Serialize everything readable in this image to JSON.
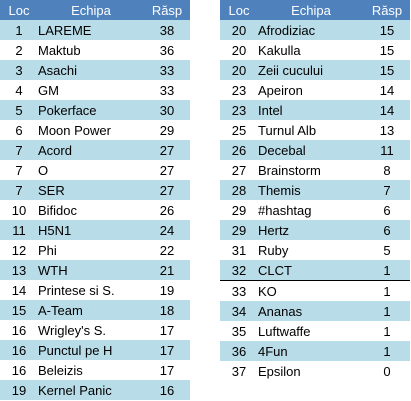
{
  "headers": {
    "loc": "Loc",
    "team": "Echipa",
    "score": "Răsp"
  },
  "left_rows": [
    {
      "loc": "1",
      "team": "LAREME",
      "score": "38"
    },
    {
      "loc": "2",
      "team": "Maktub",
      "score": "36"
    },
    {
      "loc": "3",
      "team": "Asachi",
      "score": "33"
    },
    {
      "loc": "4",
      "team": "GM",
      "score": "33"
    },
    {
      "loc": "5",
      "team": "Pokerface",
      "score": "30"
    },
    {
      "loc": "6",
      "team": "Moon Power",
      "score": "29"
    },
    {
      "loc": "7",
      "team": "Acord",
      "score": "27"
    },
    {
      "loc": "7",
      "team": "O",
      "score": "27"
    },
    {
      "loc": "7",
      "team": "SER",
      "score": "27"
    },
    {
      "loc": "10",
      "team": "Bifidoc",
      "score": "26"
    },
    {
      "loc": "11",
      "team": "H5N1",
      "score": "24"
    },
    {
      "loc": "12",
      "team": "Phi",
      "score": "22"
    },
    {
      "loc": "13",
      "team": "WTH",
      "score": "21"
    },
    {
      "loc": "14",
      "team": "Printese si S.",
      "score": "19"
    },
    {
      "loc": "15",
      "team": "A-Team",
      "score": "18"
    },
    {
      "loc": "16",
      "team": "Wrigley's S.",
      "score": "17"
    },
    {
      "loc": "16",
      "team": "Punctul pe H",
      "score": "17"
    },
    {
      "loc": "16",
      "team": "Beleizis",
      "score": "17"
    },
    {
      "loc": "19",
      "team": "Kernel Panic",
      "score": "16"
    }
  ],
  "right_rows": [
    {
      "loc": "20",
      "team": "Afrodiziac",
      "score": "15"
    },
    {
      "loc": "20",
      "team": "Kakulla",
      "score": "15"
    },
    {
      "loc": "20",
      "team": "Zeii cucului",
      "score": "15"
    },
    {
      "loc": "23",
      "team": "Apeiron",
      "score": "14"
    },
    {
      "loc": "23",
      "team": "Intel",
      "score": "14"
    },
    {
      "loc": "25",
      "team": "Turnul Alb",
      "score": "13"
    },
    {
      "loc": "26",
      "team": "Decebal",
      "score": "11"
    },
    {
      "loc": "27",
      "team": "Brainstorm",
      "score": "8"
    },
    {
      "loc": "28",
      "team": "Themis",
      "score": "7"
    },
    {
      "loc": "29",
      "team": "#hashtag",
      "score": "6"
    },
    {
      "loc": "29",
      "team": "Hertz",
      "score": "6"
    },
    {
      "loc": "31",
      "team": "Ruby",
      "score": "5"
    },
    {
      "loc": "32",
      "team": "CLCT",
      "score": "1"
    },
    {
      "loc": "33",
      "team": "KO",
      "score": "1"
    },
    {
      "loc": "34",
      "team": "Ananas",
      "score": "1"
    },
    {
      "loc": "35",
      "team": "Luftwaffe",
      "score": "1"
    },
    {
      "loc": "36",
      "team": "4Fun",
      "score": "1"
    },
    {
      "loc": "37",
      "team": "Epsilon",
      "score": "0"
    }
  ],
  "colors": {
    "header": "#4f81bd",
    "band": "#b8dce8",
    "separator": "#000000"
  }
}
